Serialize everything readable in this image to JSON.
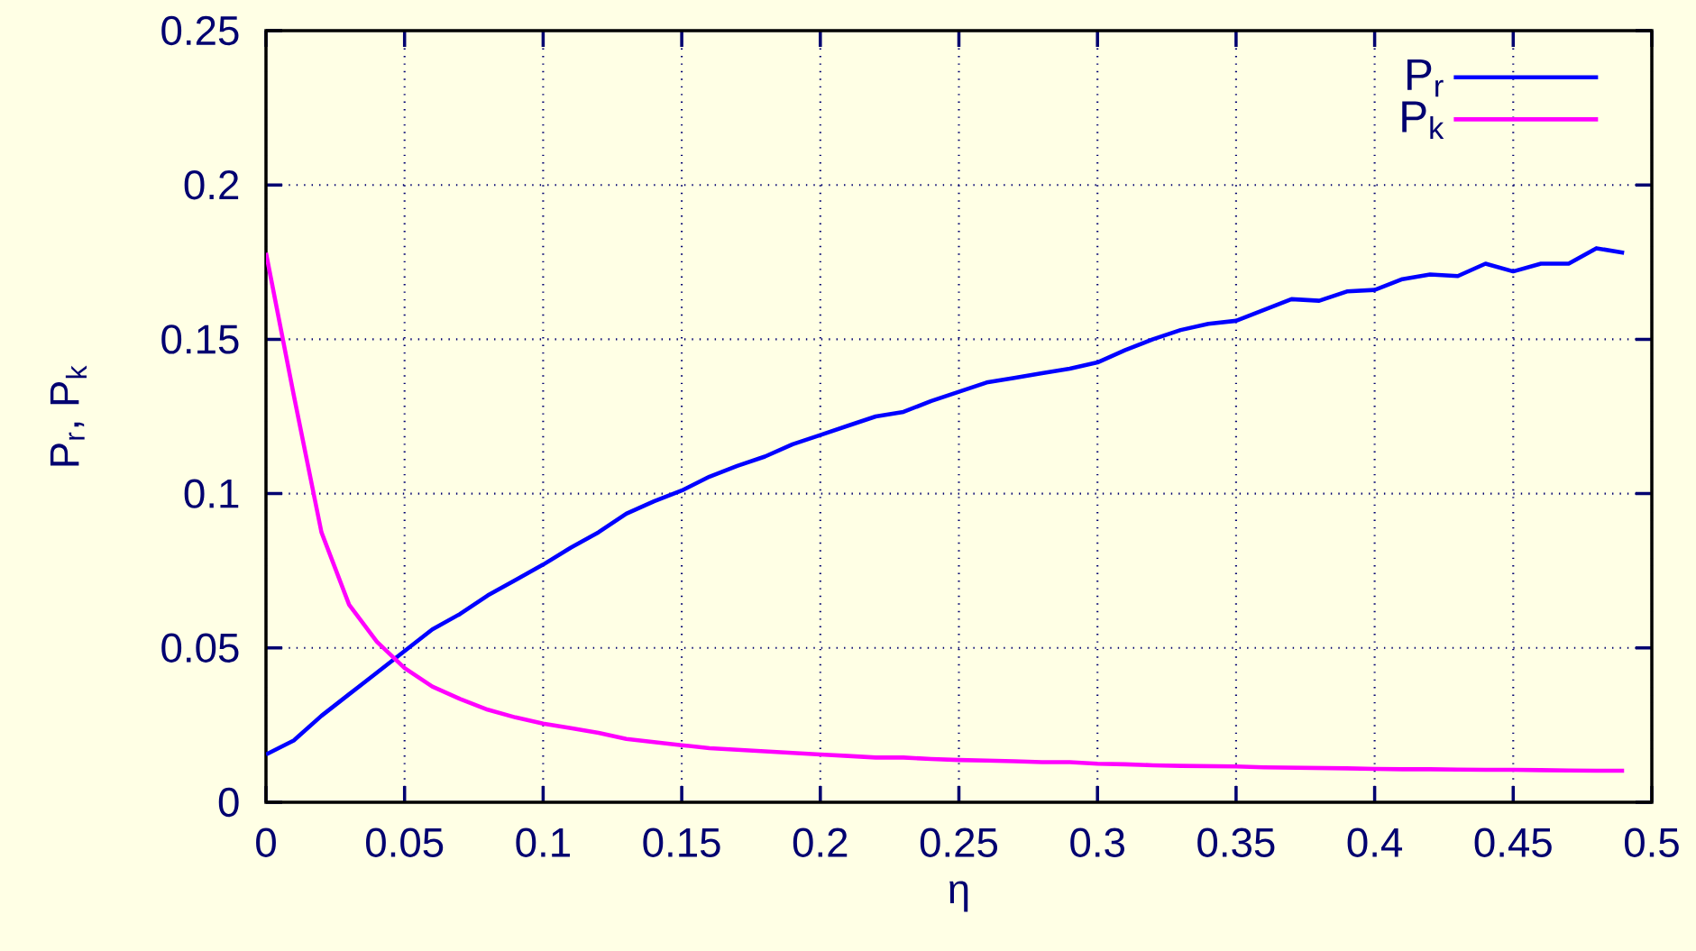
{
  "chart_data": {
    "type": "line",
    "xlabel": "η",
    "ylabel": "P$_{r}$, P$_{k}$",
    "x": [
      0,
      0.01,
      0.02,
      0.03,
      0.04,
      0.05,
      0.06,
      0.07,
      0.08,
      0.09,
      0.1,
      0.11,
      0.12,
      0.13,
      0.14,
      0.15,
      0.16,
      0.17,
      0.18,
      0.19,
      0.2,
      0.21,
      0.22,
      0.23,
      0.24,
      0.25,
      0.26,
      0.27,
      0.28,
      0.29,
      0.3,
      0.31,
      0.32,
      0.33,
      0.34,
      0.35,
      0.36,
      0.37,
      0.38,
      0.39,
      0.4,
      0.41,
      0.42,
      0.43,
      0.44,
      0.45,
      0.46,
      0.47,
      0.48,
      0.49
    ],
    "series": [
      {
        "name": "P$_{r}$",
        "color": "#0000ff",
        "values": [
          0.0155,
          0.02,
          0.028,
          0.035,
          0.042,
          0.049,
          0.056,
          0.061,
          0.067,
          0.072,
          0.077,
          0.0825,
          0.0875,
          0.0935,
          0.0975,
          0.101,
          0.1055,
          0.109,
          0.112,
          0.116,
          0.119,
          0.122,
          0.125,
          0.1265,
          0.13,
          0.133,
          0.136,
          0.1375,
          0.139,
          0.1405,
          0.1425,
          0.1465,
          0.15,
          0.153,
          0.155,
          0.156,
          0.1595,
          0.163,
          0.1625,
          0.1655,
          0.166,
          0.1695,
          0.171,
          0.1705,
          0.1745,
          0.172,
          0.1745,
          0.1745,
          0.1795,
          0.178
        ]
      },
      {
        "name": "P$_{k}$",
        "color": "#ff00ff",
        "values": [
          0.178,
          0.132,
          0.0875,
          0.064,
          0.052,
          0.0435,
          0.0375,
          0.0335,
          0.03,
          0.0275,
          0.0255,
          0.024,
          0.0225,
          0.0205,
          0.0195,
          0.0185,
          0.0175,
          0.017,
          0.0165,
          0.016,
          0.0155,
          0.015,
          0.0145,
          0.0145,
          0.014,
          0.0137,
          0.0135,
          0.0133,
          0.013,
          0.013,
          0.0125,
          0.0123,
          0.012,
          0.0118,
          0.0117,
          0.0116,
          0.0113,
          0.0112,
          0.0111,
          0.011,
          0.0108,
          0.0107,
          0.0107,
          0.0106,
          0.0105,
          0.0105,
          0.0104,
          0.0103,
          0.0102,
          0.0102
        ]
      }
    ],
    "xlim": [
      0,
      0.5
    ],
    "ylim": [
      0,
      0.25
    ],
    "xticks": [
      0,
      0.05,
      0.1,
      0.15,
      0.2,
      0.25,
      0.3,
      0.35,
      0.4,
      0.45,
      0.5
    ],
    "yticks": [
      0,
      0.05,
      0.1,
      0.15,
      0.2,
      0.25
    ],
    "grid": true,
    "legend": "top right",
    "marker": "none",
    "line_style": "solid"
  }
}
